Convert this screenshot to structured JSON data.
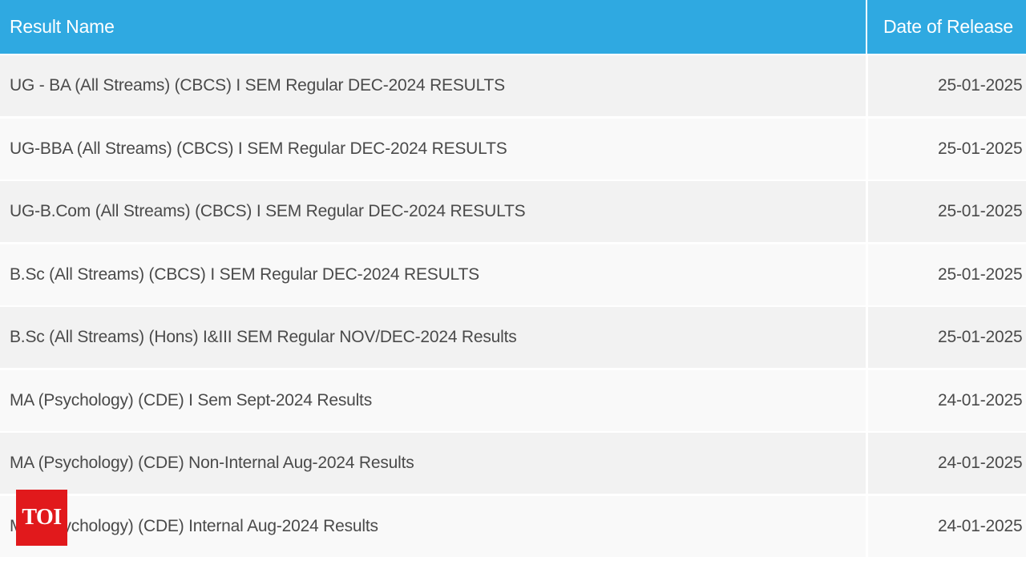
{
  "table": {
    "headers": {
      "result_name": "Result Name",
      "date_of_release": "Date of Release"
    },
    "rows": [
      {
        "name": "UG - BA (All Streams) (CBCS) I SEM Regular DEC-2024 RESULTS",
        "date": "25-01-2025"
      },
      {
        "name": "UG-BBA (All Streams) (CBCS) I SEM Regular DEC-2024 RESULTS",
        "date": "25-01-2025"
      },
      {
        "name": "UG-B.Com (All Streams) (CBCS) I SEM Regular DEC-2024 RESULTS",
        "date": "25-01-2025"
      },
      {
        "name": "B.Sc (All Streams) (CBCS) I SEM Regular DEC-2024 RESULTS",
        "date": "25-01-2025"
      },
      {
        "name": "B.Sc (All Streams) (Hons) I&III SEM Regular NOV/DEC-2024 Results",
        "date": "25-01-2025"
      },
      {
        "name": "MA (Psychology) (CDE) I Sem Sept-2024 Results",
        "date": "24-01-2025"
      },
      {
        "name": "MA (Psychology) (CDE) Non-Internal Aug-2024 Results",
        "date": "24-01-2025"
      },
      {
        "name": "MA (Psychology) (CDE) Internal Aug-2024 Results",
        "date": "24-01-2025"
      }
    ]
  },
  "watermark": {
    "logo_text": "TOI",
    "color": "#e1191c"
  },
  "colors": {
    "header_bg": "#2fa9e1",
    "row_odd_bg": "#f2f2f2",
    "row_even_bg": "#f9f9f9",
    "text": "#4a4a4a"
  }
}
